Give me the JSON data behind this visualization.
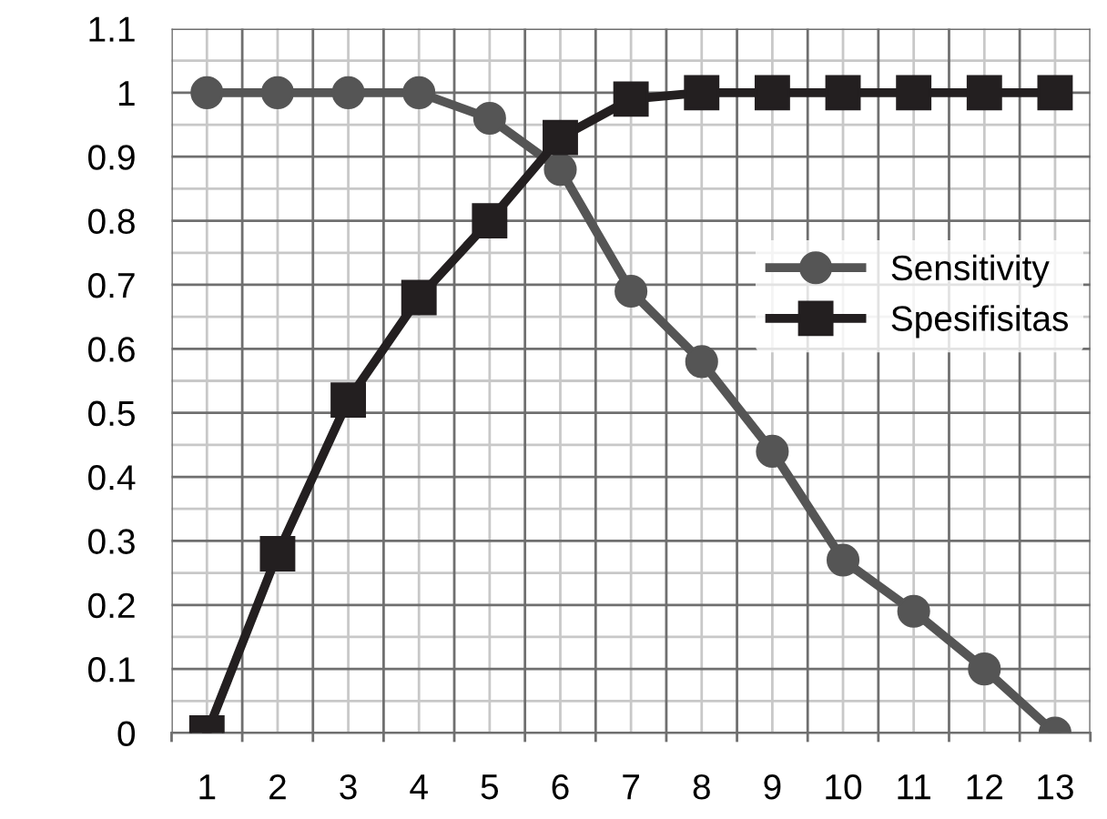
{
  "chart_data": {
    "type": "line",
    "categories": [
      "1",
      "2",
      "3",
      "4",
      "5",
      "6",
      "7",
      "8",
      "9",
      "10",
      "11",
      "12",
      "13"
    ],
    "series": [
      {
        "name": "Sensitivity",
        "color": "#555555",
        "marker": "circle",
        "values": [
          1,
          1,
          1,
          1,
          0.96,
          0.88,
          0.69,
          0.58,
          0.44,
          0.27,
          0.19,
          0.1,
          0
        ]
      },
      {
        "name": "Spesifisitas",
        "color": "#231f20",
        "marker": "square",
        "values": [
          0,
          0.28,
          0.52,
          0.68,
          0.8,
          0.93,
          0.99,
          1,
          1,
          1,
          1,
          1,
          1
        ]
      }
    ],
    "ylim": [
      0,
      1.1
    ],
    "yticks": [
      0,
      0.1,
      0.2,
      0.3,
      0.4,
      0.5,
      0.6,
      0.7,
      0.8,
      0.9,
      1,
      1.1
    ],
    "grid": true,
    "legend": "right",
    "line_style": "solid"
  }
}
